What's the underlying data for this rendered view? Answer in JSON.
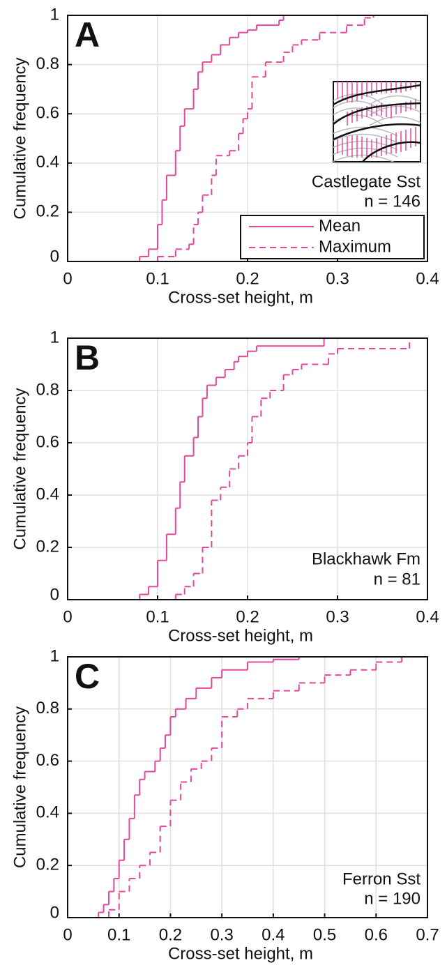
{
  "chart_data": [
    {
      "type": "step",
      "panel_label": "A",
      "xlabel": "Cross-set height, m",
      "ylabel": "Cumulative frequency",
      "annotations": [
        "Castlegate Sst",
        "n = 146"
      ],
      "legend": "lower right",
      "grid": true,
      "xlim": [
        0,
        0.4
      ],
      "ylim": [
        0,
        1
      ],
      "xticks": [
        0,
        0.1,
        0.2,
        0.3,
        0.4
      ],
      "yticks": [
        0,
        0.2,
        0.4,
        0.6,
        0.8,
        1
      ],
      "series": [
        {
          "name": "Mean",
          "color": "#e2479c",
          "dash": false,
          "x": [
            0.065,
            0.08,
            0.09,
            0.1,
            0.105,
            0.11,
            0.12,
            0.125,
            0.13,
            0.14,
            0.145,
            0.15,
            0.16,
            0.17,
            0.18,
            0.19,
            0.2,
            0.21,
            0.235,
            0.24
          ],
          "values": [
            0,
            0.02,
            0.05,
            0.15,
            0.25,
            0.35,
            0.45,
            0.55,
            0.62,
            0.7,
            0.77,
            0.81,
            0.84,
            0.88,
            0.91,
            0.93,
            0.94,
            0.96,
            0.98,
            1
          ]
        },
        {
          "name": "Maximum",
          "color": "#e2479c",
          "dash": true,
          "x": [
            0.07,
            0.1,
            0.12,
            0.135,
            0.14,
            0.145,
            0.15,
            0.16,
            0.165,
            0.18,
            0.19,
            0.195,
            0.2,
            0.205,
            0.22,
            0.24,
            0.25,
            0.26,
            0.28,
            0.31,
            0.33,
            0.34
          ],
          "values": [
            0,
            0.02,
            0.05,
            0.07,
            0.15,
            0.2,
            0.27,
            0.35,
            0.43,
            0.45,
            0.52,
            0.58,
            0.62,
            0.75,
            0.81,
            0.85,
            0.88,
            0.9,
            0.93,
            0.96,
            0.99,
            1
          ]
        }
      ]
    },
    {
      "type": "step",
      "panel_label": "B",
      "xlabel": "Cross-set height, m",
      "ylabel": "Cumulative frequency",
      "annotations": [
        "Blackhawk Fm",
        "n = 81"
      ],
      "grid": true,
      "xlim": [
        0,
        0.4
      ],
      "ylim": [
        0,
        1
      ],
      "xticks": [
        0,
        0.1,
        0.2,
        0.3,
        0.4
      ],
      "yticks": [
        0,
        0.2,
        0.4,
        0.6,
        0.8,
        1
      ],
      "series": [
        {
          "color": "#e2479c",
          "dash": false,
          "x": [
            0.078,
            0.08,
            0.09,
            0.1,
            0.11,
            0.12,
            0.125,
            0.13,
            0.14,
            0.145,
            0.15,
            0.155,
            0.165,
            0.175,
            0.185,
            0.19,
            0.2,
            0.21,
            0.285
          ],
          "values": [
            0,
            0.02,
            0.05,
            0.15,
            0.25,
            0.35,
            0.45,
            0.55,
            0.62,
            0.7,
            0.77,
            0.82,
            0.85,
            0.88,
            0.91,
            0.93,
            0.95,
            0.97,
            1
          ]
        },
        {
          "color": "#e2479c",
          "dash": true,
          "x": [
            0.1,
            0.12,
            0.13,
            0.14,
            0.15,
            0.16,
            0.17,
            0.18,
            0.19,
            0.2,
            0.205,
            0.215,
            0.225,
            0.24,
            0.25,
            0.26,
            0.29,
            0.3,
            0.38
          ],
          "values": [
            0,
            0.02,
            0.05,
            0.1,
            0.2,
            0.38,
            0.43,
            0.5,
            0.55,
            0.6,
            0.7,
            0.77,
            0.8,
            0.86,
            0.88,
            0.9,
            0.94,
            0.96,
            1
          ]
        }
      ]
    },
    {
      "type": "step",
      "panel_label": "C",
      "xlabel": "Cross-set height, m",
      "ylabel": "Cumulative frequency",
      "annotations": [
        "Ferron Sst",
        "n = 190"
      ],
      "grid": true,
      "xlim": [
        0,
        0.7
      ],
      "ylim": [
        0,
        1
      ],
      "xticks": [
        0,
        0.1,
        0.2,
        0.3,
        0.4,
        0.5,
        0.6,
        0.7
      ],
      "yticks": [
        0,
        0.2,
        0.4,
        0.6,
        0.8,
        1
      ],
      "series": [
        {
          "color": "#e2479c",
          "dash": false,
          "x": [
            0.055,
            0.06,
            0.07,
            0.08,
            0.09,
            0.1,
            0.11,
            0.12,
            0.13,
            0.14,
            0.15,
            0.17,
            0.18,
            0.19,
            0.2,
            0.21,
            0.23,
            0.25,
            0.28,
            0.3,
            0.35,
            0.4,
            0.45
          ],
          "values": [
            0,
            0.02,
            0.05,
            0.1,
            0.15,
            0.22,
            0.3,
            0.38,
            0.47,
            0.53,
            0.56,
            0.6,
            0.65,
            0.7,
            0.77,
            0.8,
            0.84,
            0.88,
            0.92,
            0.95,
            0.98,
            0.99,
            1
          ]
        },
        {
          "color": "#e2479c",
          "dash": true,
          "x": [
            0.07,
            0.08,
            0.1,
            0.12,
            0.14,
            0.16,
            0.18,
            0.2,
            0.22,
            0.24,
            0.26,
            0.28,
            0.3,
            0.33,
            0.35,
            0.4,
            0.45,
            0.5,
            0.55,
            0.6,
            0.65
          ],
          "values": [
            0,
            0.03,
            0.1,
            0.15,
            0.2,
            0.25,
            0.35,
            0.45,
            0.52,
            0.57,
            0.6,
            0.65,
            0.77,
            0.8,
            0.84,
            0.87,
            0.9,
            0.93,
            0.95,
            0.98,
            1
          ]
        }
      ]
    }
  ]
}
